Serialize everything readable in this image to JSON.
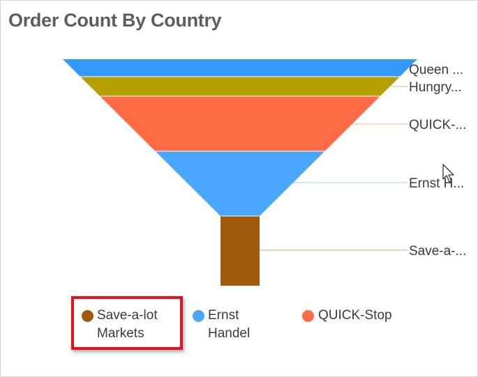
{
  "widget": {
    "title": "Order Count By Country"
  },
  "chart_data": {
    "type": "funnel",
    "title": "Order Count By Country",
    "stages": [
      {
        "label": "Queen ...",
        "color": "#3399ff"
      },
      {
        "label": "Hungry...",
        "color": "#b5a000"
      },
      {
        "label": "QUICK-...",
        "color": "#ff6b45"
      },
      {
        "label": "Ernst H...",
        "color": "#4aa6ff"
      },
      {
        "label": "Save-a-...",
        "color": "#a05a0c"
      }
    ],
    "legend_position": "bottom"
  },
  "legend": {
    "items": [
      {
        "label": "Save-a-lot Markets",
        "color": "#a05a0c"
      },
      {
        "label": "Ernst Handel",
        "color": "#4aa6ff"
      },
      {
        "label": "QUICK-Stop",
        "color": "#ff6b45"
      }
    ]
  }
}
